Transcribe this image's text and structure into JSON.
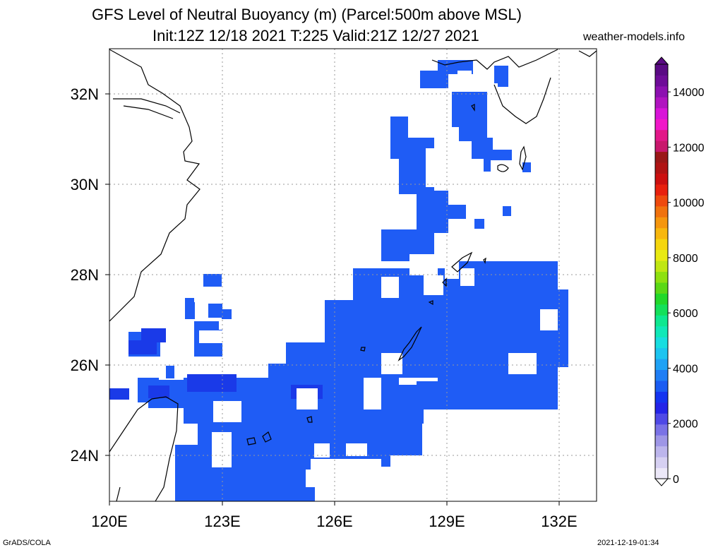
{
  "title": {
    "line1": "GFS Level of Neutral Buoyancy (m) (Parcel:500m above MSL)",
    "line2": "Init:12Z 12/18 2021 T:225 Valid:21Z 12/27 2021"
  },
  "credit": "weather-models.info",
  "footer": {
    "left": "GrADS/COLA",
    "right": "2021-12-19-01:34"
  },
  "map": {
    "lon_ticks": [
      "120E",
      "123E",
      "126E",
      "129E",
      "132E"
    ],
    "lat_ticks": [
      "24N",
      "26N",
      "28N",
      "30N",
      "32N"
    ],
    "colorbar_labels": [
      "0",
      "2000",
      "4000",
      "6000",
      "8000",
      "10000",
      "12000",
      "14000"
    ],
    "field_color": "#1f5cf5",
    "deep_color": "#1a3ae8",
    "coast_color": "#000000"
  }
}
